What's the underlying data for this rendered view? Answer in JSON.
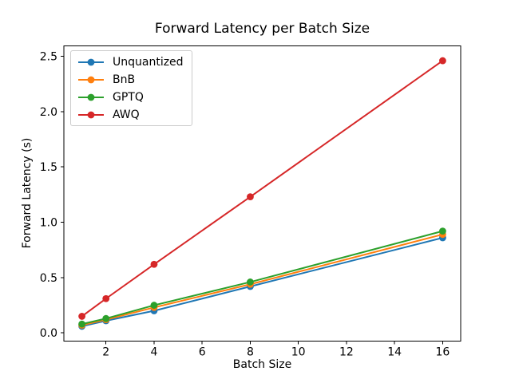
{
  "figure": {
    "background": "#ffffff",
    "axis_color": "#000000"
  },
  "chart_data": {
    "type": "line",
    "title": "Forward Latency per Batch Size",
    "xlabel": "Batch Size",
    "ylabel": "Forward Latency (s)",
    "x": [
      1,
      2,
      4,
      8,
      16
    ],
    "series": [
      {
        "name": "Unquantized",
        "color": "#1f77b4",
        "values": [
          0.06,
          0.11,
          0.2,
          0.42,
          0.86
        ]
      },
      {
        "name": "BnB",
        "color": "#ff7f0e",
        "values": [
          0.07,
          0.12,
          0.23,
          0.44,
          0.89
        ]
      },
      {
        "name": "GPTQ",
        "color": "#2ca02c",
        "values": [
          0.08,
          0.13,
          0.25,
          0.46,
          0.92
        ]
      },
      {
        "name": "AWQ",
        "color": "#d62728",
        "values": [
          0.15,
          0.31,
          0.62,
          1.23,
          2.46
        ]
      }
    ],
    "xticks": {
      "values": [
        2,
        4,
        6,
        8,
        10,
        12,
        14,
        16
      ],
      "labels": [
        "2",
        "4",
        "6",
        "8",
        "10",
        "12",
        "14",
        "16"
      ]
    },
    "yticks": {
      "values": [
        0,
        0.5,
        1.0,
        1.5,
        2.0,
        2.5
      ],
      "labels": [
        "0.0",
        "0.5",
        "1.0",
        "1.5",
        "2.0",
        "2.5"
      ]
    },
    "xlim": [
      0.25,
      16.75
    ],
    "ylim": [
      -0.074,
      2.594
    ],
    "grid": false,
    "marker": "o",
    "legend": {
      "position": "upper left",
      "entries": [
        "Unquantized",
        "BnB",
        "GPTQ",
        "AWQ"
      ],
      "border_color": "#cccccc"
    }
  }
}
